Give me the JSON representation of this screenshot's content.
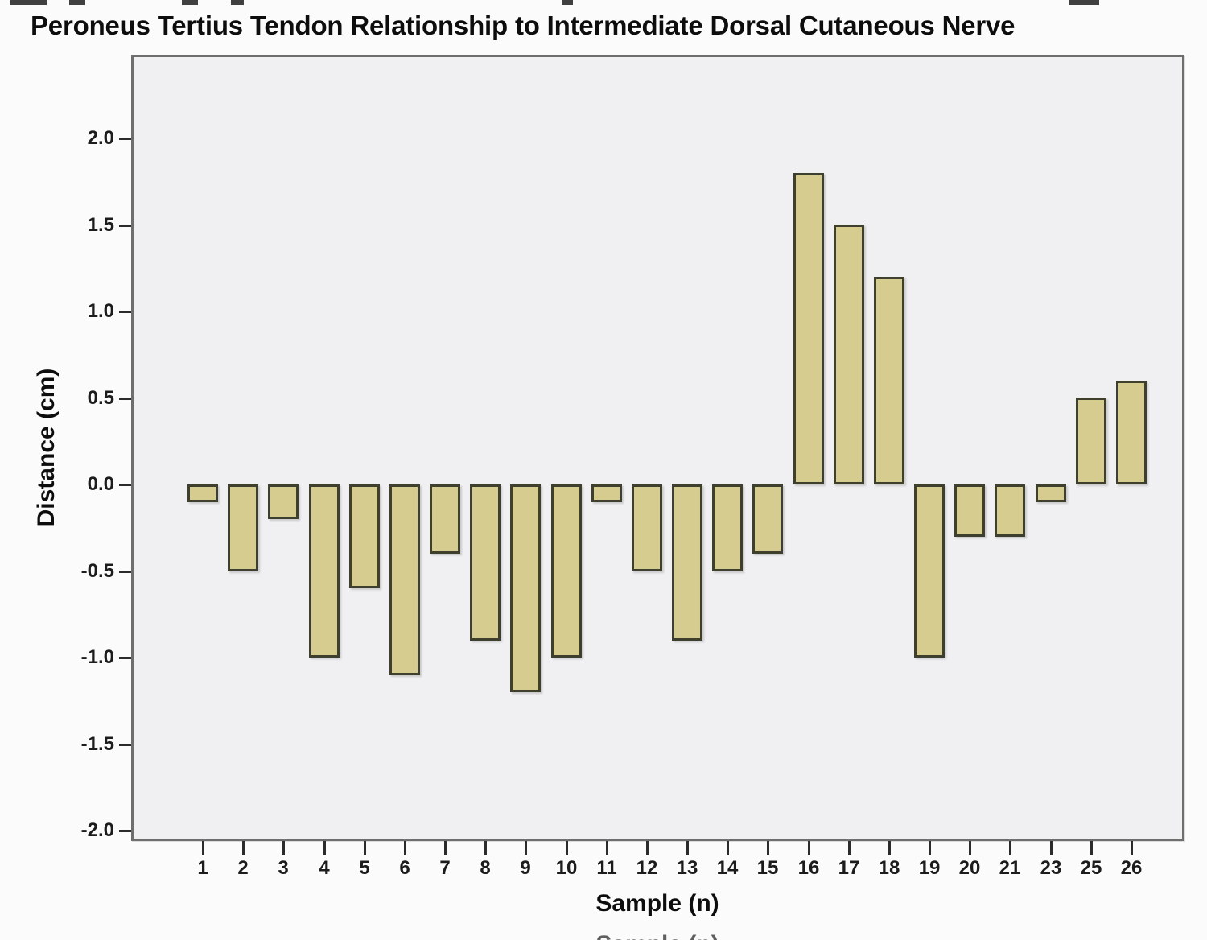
{
  "chart_data": {
    "type": "bar",
    "title": "Peroneus Tertius Tendon Relationship to Intermediate Dorsal Cutaneous Nerve",
    "xlabel": "Sample (n)",
    "ylabel": "Distance (cm)",
    "categories": [
      "1",
      "2",
      "3",
      "4",
      "5",
      "6",
      "7",
      "8",
      "9",
      "10",
      "11",
      "12",
      "13",
      "14",
      "15",
      "16",
      "17",
      "18",
      "19",
      "20",
      "21",
      "23",
      "25",
      "26"
    ],
    "values": [
      -0.1,
      -0.5,
      -0.2,
      -1.0,
      -0.6,
      -1.1,
      -0.4,
      -0.9,
      -1.2,
      -1.0,
      -0.1,
      -0.5,
      -0.9,
      -0.5,
      -0.4,
      1.8,
      1.5,
      1.2,
      -1.0,
      -0.3,
      -0.3,
      -0.1,
      0.5,
      0.6
    ],
    "ylim": [
      -2.0,
      2.0
    ],
    "ytick_step": 0.5,
    "ytick_labels": [
      "2.0",
      "1.5",
      "1.0",
      "0.5",
      "0.0",
      "-0.5",
      "-1.0",
      "-1.5",
      "-2.0"
    ],
    "grid": false,
    "legend_position": "none",
    "colors": {
      "bar_fill": "#d6cc8f",
      "bar_border": "#3f3f2e",
      "plot_bg": "#f0f0f2",
      "frame_border": "#6e6e6e",
      "page_bg": "#fbfbfb",
      "text": "#151515"
    }
  }
}
